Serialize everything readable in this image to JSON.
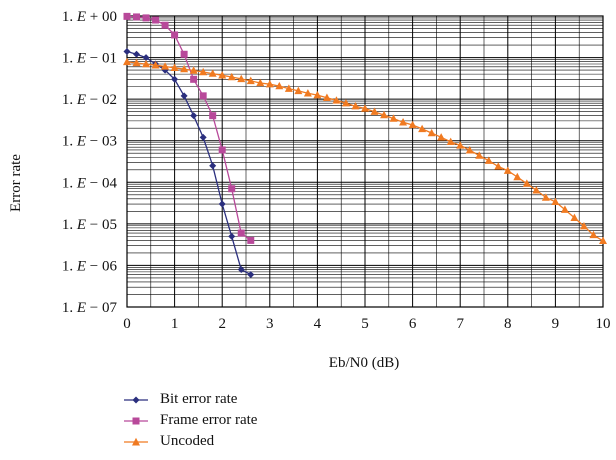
{
  "chart_data": {
    "type": "line",
    "xlabel": "Eb/N0 (dB)",
    "ylabel": "Error rate",
    "xlim": [
      0,
      10
    ],
    "ylim": [
      1e-07,
      1
    ],
    "yscale": "log",
    "grid": true,
    "legend_position": "bottom-left",
    "x_ticks": [
      0,
      1,
      2,
      3,
      4,
      5,
      6,
      7,
      8,
      9,
      10
    ],
    "y_ticks": [
      {
        "value": 1,
        "label_base": "1. ",
        "label_e": "E",
        "label_exp": " + 00"
      },
      {
        "value": 0.1,
        "label_base": "1. ",
        "label_e": "E",
        "label_exp": " − 01"
      },
      {
        "value": 0.01,
        "label_base": "1. ",
        "label_e": "E",
        "label_exp": " − 02"
      },
      {
        "value": 0.001,
        "label_base": "1. ",
        "label_e": "E",
        "label_exp": " − 03"
      },
      {
        "value": 0.0001,
        "label_base": "1. ",
        "label_e": "E",
        "label_exp": " − 04"
      },
      {
        "value": 1e-05,
        "label_base": "1. ",
        "label_e": "E",
        "label_exp": " − 05"
      },
      {
        "value": 1e-06,
        "label_base": "1. ",
        "label_e": "E",
        "label_exp": " − 06"
      },
      {
        "value": 1e-07,
        "label_base": "1. ",
        "label_e": "E",
        "label_exp": " − 07"
      }
    ],
    "series": [
      {
        "name": "Bit error rate",
        "color": "#2b2f7e",
        "marker": "diamond",
        "x": [
          0,
          0.2,
          0.4,
          0.6,
          0.8,
          1.0,
          1.2,
          1.4,
          1.6,
          1.8,
          2.0,
          2.2,
          2.4,
          2.6
        ],
        "y": [
          0.14,
          0.12,
          0.1,
          0.07,
          0.05,
          0.03,
          0.012,
          0.004,
          0.0012,
          0.00025,
          3e-05,
          5e-06,
          8e-07,
          6e-07
        ]
      },
      {
        "name": "Frame error rate",
        "color": "#b8499a",
        "marker": "square",
        "x": [
          0,
          0.2,
          0.4,
          0.6,
          0.8,
          1.0,
          1.2,
          1.4,
          1.6,
          1.8,
          2.0,
          2.2,
          2.4,
          2.6
        ],
        "y": [
          0.98,
          0.95,
          0.9,
          0.8,
          0.6,
          0.35,
          0.12,
          0.03,
          0.012,
          0.004,
          0.0006,
          7e-05,
          6e-06,
          4e-06
        ]
      },
      {
        "name": "Uncoded",
        "color": "#f07a21",
        "marker": "triangle",
        "x": [
          0,
          0.2,
          0.4,
          0.6,
          0.8,
          1.0,
          1.2,
          1.4,
          1.6,
          1.8,
          2.0,
          2.2,
          2.4,
          2.6,
          2.8,
          3.0,
          3.2,
          3.4,
          3.6,
          3.8,
          4.0,
          4.2,
          4.4,
          4.6,
          4.8,
          5.0,
          5.2,
          5.4,
          5.6,
          5.8,
          6.0,
          6.2,
          6.4,
          6.6,
          6.8,
          7.0,
          7.2,
          7.4,
          7.6,
          7.8,
          8.0,
          8.2,
          8.4,
          8.6,
          8.8,
          9.0,
          9.2,
          9.4,
          9.6,
          9.8,
          10.0
        ],
        "y": [
          0.0786,
          0.0741,
          0.0697,
          0.0654,
          0.0611,
          0.0569,
          0.0528,
          0.0488,
          0.0449,
          0.0412,
          0.0375,
          0.034,
          0.0307,
          0.0275,
          0.0245,
          0.0229,
          0.0206,
          0.0179,
          0.0158,
          0.0138,
          0.0125,
          0.0108,
          0.00932,
          0.00798,
          0.00677,
          0.00595,
          0.00499,
          0.00414,
          0.00341,
          0.00278,
          0.00239,
          0.00192,
          0.00153,
          0.00121,
          0.00094,
          0.00077,
          0.00059,
          0.00044,
          0.00033,
          0.00024,
          0.00019,
          0.000134,
          9.3e-05,
          6.4e-05,
          4.3e-05,
          3.4e-05,
          2.2e-05,
          1.4e-05,
          8.8e-06,
          5.4e-06,
          3.9e-06
        ]
      }
    ]
  }
}
